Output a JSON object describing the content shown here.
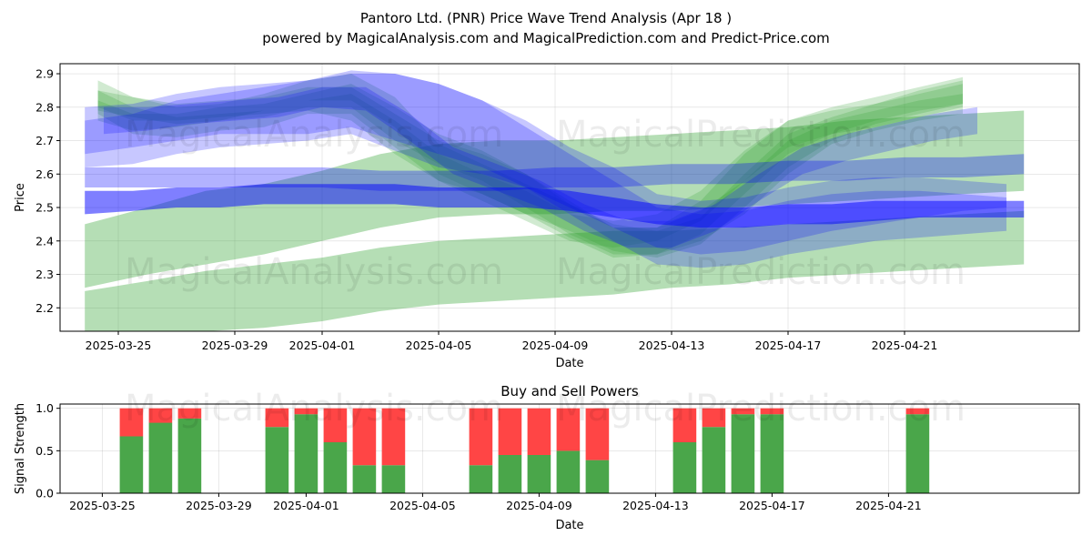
{
  "chart_data": [
    {
      "type": "area",
      "title_line1": "Pantoro Ltd. (PNR) Price Wave Trend Analysis (Apr 18 )",
      "title_line2": "powered by MagicalAnalysis.com and MagicalPrediction.com and Predict-Price.com",
      "xlabel": "Date",
      "ylabel": "Price",
      "x_start": "2025-03-23",
      "x_range_days": [
        0.55,
        33.55
      ],
      "xlim": [
        0,
        35
      ],
      "ylim": [
        2.13,
        2.93
      ],
      "x_ticks": [
        {
          "day": 2,
          "label": "2025-03-25"
        },
        {
          "day": 6,
          "label": "2025-03-29"
        },
        {
          "day": 9,
          "label": "2025-04-01"
        },
        {
          "day": 13,
          "label": "2025-04-05"
        },
        {
          "day": 17,
          "label": "2025-04-09"
        },
        {
          "day": 21,
          "label": "2025-04-13"
        },
        {
          "day": 25,
          "label": "2025-04-17"
        },
        {
          "day": 29,
          "label": "2025-04-21"
        }
      ],
      "y_ticks": [
        2.2,
        2.3,
        2.4,
        2.5,
        2.6,
        2.7,
        2.8,
        2.9
      ],
      "grid": true,
      "watermarks": [
        "MagicalAnalysis.com",
        "MagicalPrediction.com"
      ],
      "series": [
        {
          "name": "green-band-1",
          "color": "#2ca02c",
          "opacity": 0.35,
          "x": [
            0.85,
            3,
            5,
            7,
            9,
            11,
            13,
            15,
            17,
            19,
            21,
            23,
            25,
            27,
            29,
            31,
            33.1
          ],
          "lower": [
            2.26,
            2.3,
            2.33,
            2.36,
            2.4,
            2.44,
            2.47,
            2.48,
            2.48,
            2.49,
            2.49,
            2.5,
            2.51,
            2.52,
            2.53,
            2.54,
            2.55
          ],
          "upper": [
            2.45,
            2.5,
            2.55,
            2.57,
            2.61,
            2.66,
            2.69,
            2.7,
            2.7,
            2.71,
            2.72,
            2.73,
            2.74,
            2.76,
            2.77,
            2.78,
            2.79
          ]
        },
        {
          "name": "green-band-2",
          "color": "#2ca02c",
          "opacity": 0.35,
          "x": [
            0.85,
            3,
            5,
            7,
            9,
            11,
            13,
            15,
            17,
            19,
            21,
            23,
            25,
            27,
            29,
            31,
            33.1
          ],
          "lower": [
            2.12,
            2.12,
            2.13,
            2.14,
            2.16,
            2.19,
            2.21,
            2.22,
            2.23,
            2.24,
            2.26,
            2.27,
            2.29,
            2.3,
            2.31,
            2.32,
            2.33
          ],
          "upper": [
            2.25,
            2.28,
            2.31,
            2.33,
            2.35,
            2.38,
            2.4,
            2.41,
            2.42,
            2.43,
            2.43,
            2.44,
            2.45,
            2.46,
            2.47,
            2.48,
            2.49
          ]
        },
        {
          "name": "green-wave-1",
          "color": "#2ca02c",
          "opacity": 0.22,
          "x": [
            1.3,
            2.5,
            4,
            5.5,
            7,
            8.5,
            10,
            11.5,
            13,
            14.5,
            16,
            17.5,
            19,
            20.5,
            22,
            23.5,
            25,
            26.5,
            28,
            29.5,
            31
          ],
          "lower": [
            2.8,
            2.76,
            2.76,
            2.77,
            2.78,
            2.79,
            2.76,
            2.66,
            2.58,
            2.54,
            2.48,
            2.41,
            2.35,
            2.36,
            2.42,
            2.54,
            2.66,
            2.72,
            2.76,
            2.79,
            2.81
          ],
          "upper": [
            2.88,
            2.83,
            2.81,
            2.82,
            2.83,
            2.86,
            2.86,
            2.78,
            2.7,
            2.66,
            2.6,
            2.52,
            2.44,
            2.44,
            2.52,
            2.66,
            2.76,
            2.8,
            2.83,
            2.86,
            2.89
          ]
        },
        {
          "name": "green-wave-2",
          "color": "#2ca02c",
          "opacity": 0.22,
          "x": [
            1.3,
            2.5,
            4,
            5.5,
            7,
            8.5,
            10,
            11.5,
            13,
            14.5,
            16,
            17.5,
            19,
            20.5,
            22,
            23.5,
            25,
            26.5,
            28,
            29.5,
            31
          ],
          "lower": [
            2.76,
            2.73,
            2.74,
            2.76,
            2.77,
            2.8,
            2.8,
            2.7,
            2.63,
            2.58,
            2.5,
            2.42,
            2.36,
            2.36,
            2.4,
            2.48,
            2.6,
            2.69,
            2.73,
            2.76,
            2.78
          ],
          "upper": [
            2.82,
            2.78,
            2.78,
            2.8,
            2.81,
            2.84,
            2.87,
            2.8,
            2.72,
            2.67,
            2.6,
            2.51,
            2.44,
            2.44,
            2.49,
            2.58,
            2.7,
            2.76,
            2.79,
            2.82,
            2.84
          ]
        },
        {
          "name": "green-wave-3",
          "color": "#2ca02c",
          "opacity": 0.22,
          "x": [
            1.3,
            2.5,
            4,
            5.5,
            7,
            8.5,
            10,
            11.5,
            13,
            14.5,
            16,
            17.5,
            19,
            20.5,
            22,
            23.5,
            25,
            26.5,
            28,
            29.5,
            31
          ],
          "lower": [
            2.78,
            2.72,
            2.71,
            2.73,
            2.74,
            2.78,
            2.78,
            2.68,
            2.58,
            2.52,
            2.46,
            2.4,
            2.38,
            2.4,
            2.46,
            2.58,
            2.68,
            2.72,
            2.74,
            2.77,
            2.8
          ],
          "upper": [
            2.85,
            2.8,
            2.77,
            2.78,
            2.79,
            2.82,
            2.84,
            2.76,
            2.66,
            2.6,
            2.55,
            2.48,
            2.46,
            2.48,
            2.55,
            2.67,
            2.76,
            2.79,
            2.81,
            2.84,
            2.87
          ]
        },
        {
          "name": "green-wave-4",
          "color": "#2ca02c",
          "opacity": 0.22,
          "x": [
            1.3,
            2.5,
            4,
            5.5,
            7,
            8.5,
            10,
            11.5,
            13,
            14.5,
            16,
            17.5,
            19,
            20.5,
            22,
            23.5,
            25,
            26.5,
            28,
            29.5,
            31
          ],
          "lower": [
            2.79,
            2.77,
            2.75,
            2.76,
            2.79,
            2.82,
            2.82,
            2.74,
            2.6,
            2.54,
            2.48,
            2.43,
            2.37,
            2.35,
            2.39,
            2.5,
            2.62,
            2.7,
            2.75,
            2.78,
            2.81
          ],
          "upper": [
            2.85,
            2.83,
            2.8,
            2.81,
            2.84,
            2.88,
            2.9,
            2.83,
            2.69,
            2.63,
            2.57,
            2.51,
            2.45,
            2.43,
            2.47,
            2.6,
            2.72,
            2.77,
            2.81,
            2.85,
            2.88
          ]
        },
        {
          "name": "blue-band-1",
          "color": "#0000ff",
          "opacity": 0.3,
          "x": [
            0.85,
            3,
            5,
            7,
            9,
            11,
            13,
            15,
            17,
            19,
            21,
            23,
            25,
            27,
            29,
            31,
            33.1
          ],
          "lower": [
            2.56,
            2.56,
            2.56,
            2.56,
            2.56,
            2.55,
            2.55,
            2.55,
            2.56,
            2.56,
            2.57,
            2.57,
            2.58,
            2.58,
            2.59,
            2.59,
            2.6
          ],
          "upper": [
            2.62,
            2.62,
            2.62,
            2.62,
            2.62,
            2.61,
            2.61,
            2.61,
            2.62,
            2.62,
            2.63,
            2.63,
            2.64,
            2.64,
            2.65,
            2.65,
            2.66
          ]
        },
        {
          "name": "blue-wave-1",
          "color": "#0000ff",
          "opacity": 0.22,
          "x": [
            0.85,
            2.5,
            4,
            5.5,
            7,
            8.5,
            10,
            11.5,
            13,
            14.5,
            16,
            17.5,
            19,
            20.5,
            22,
            23.5,
            25,
            26.5,
            28,
            29.5,
            31,
            32.5
          ],
          "lower": [
            2.62,
            2.63,
            2.66,
            2.68,
            2.69,
            2.7,
            2.72,
            2.67,
            2.62,
            2.6,
            2.56,
            2.5,
            2.44,
            2.38,
            2.36,
            2.37,
            2.4,
            2.43,
            2.45,
            2.47,
            2.49,
            2.5
          ],
          "upper": [
            2.8,
            2.81,
            2.84,
            2.86,
            2.87,
            2.88,
            2.9,
            2.9,
            2.87,
            2.82,
            2.76,
            2.68,
            2.62,
            2.54,
            2.52,
            2.53,
            2.56,
            2.58,
            2.59,
            2.59,
            2.58,
            2.57
          ]
        },
        {
          "name": "blue-wave-2",
          "color": "#0000ff",
          "opacity": 0.22,
          "x": [
            0.85,
            2.5,
            4,
            5.5,
            7,
            8.5,
            10,
            11.5,
            13,
            14.5,
            16,
            17.5,
            19,
            20.5,
            22,
            23.5,
            25,
            26.5,
            28,
            29.5,
            31,
            32.5
          ],
          "lower": [
            2.66,
            2.68,
            2.7,
            2.72,
            2.72,
            2.72,
            2.74,
            2.7,
            2.66,
            2.62,
            2.56,
            2.48,
            2.4,
            2.33,
            2.32,
            2.33,
            2.36,
            2.38,
            2.4,
            2.41,
            2.42,
            2.43
          ],
          "upper": [
            2.76,
            2.78,
            2.82,
            2.84,
            2.86,
            2.88,
            2.91,
            2.9,
            2.87,
            2.82,
            2.74,
            2.66,
            2.58,
            2.5,
            2.48,
            2.49,
            2.52,
            2.54,
            2.55,
            2.55,
            2.54,
            2.53
          ]
        },
        {
          "name": "blue-wave-3",
          "color": "#0000ff",
          "opacity": 0.22,
          "x": [
            1.5,
            3,
            4.5,
            6,
            7.5,
            9,
            10.5,
            12,
            13.5,
            15,
            16.5,
            18,
            19.5,
            21,
            22.5,
            24,
            25.5,
            27,
            28.5,
            30,
            31.5
          ],
          "lower": [
            2.72,
            2.73,
            2.75,
            2.76,
            2.77,
            2.8,
            2.79,
            2.7,
            2.6,
            2.55,
            2.5,
            2.43,
            2.38,
            2.38,
            2.43,
            2.52,
            2.6,
            2.64,
            2.67,
            2.7,
            2.72
          ],
          "upper": [
            2.8,
            2.8,
            2.81,
            2.82,
            2.83,
            2.86,
            2.86,
            2.78,
            2.68,
            2.63,
            2.58,
            2.51,
            2.46,
            2.46,
            2.51,
            2.6,
            2.68,
            2.72,
            2.75,
            2.78,
            2.8
          ]
        },
        {
          "name": "blue-band-2",
          "color": "#0000ff",
          "opacity": 0.5,
          "x": [
            0.85,
            2.5,
            4,
            5.5,
            7,
            8.5,
            10,
            11.5,
            13,
            14.5,
            16,
            17.5,
            19,
            20.5,
            22,
            23.5,
            25,
            26.5,
            28,
            29.5,
            31,
            33.1
          ],
          "lower": [
            2.48,
            2.49,
            2.5,
            2.5,
            2.51,
            2.51,
            2.51,
            2.51,
            2.5,
            2.5,
            2.5,
            2.49,
            2.47,
            2.45,
            2.44,
            2.44,
            2.45,
            2.45,
            2.46,
            2.47,
            2.47,
            2.47
          ],
          "upper": [
            2.55,
            2.55,
            2.56,
            2.56,
            2.57,
            2.57,
            2.57,
            2.57,
            2.56,
            2.56,
            2.56,
            2.55,
            2.53,
            2.51,
            2.5,
            2.5,
            2.51,
            2.51,
            2.52,
            2.52,
            2.52,
            2.52
          ]
        }
      ]
    },
    {
      "type": "bar",
      "title": "Buy and Sell Powers",
      "xlabel": "Date",
      "ylabel": "Signal Strength",
      "x_start": "2025-03-23",
      "xlim": [
        0,
        35
      ],
      "ylim": [
        0,
        1.05
      ],
      "y_ticks": [
        0.0,
        0.5,
        1.0
      ],
      "x_ticks": [
        {
          "day": 2,
          "label": "2025-03-25"
        },
        {
          "day": 6,
          "label": "2025-03-29"
        },
        {
          "day": 9,
          "label": "2025-04-01"
        },
        {
          "day": 13,
          "label": "2025-04-05"
        },
        {
          "day": 17,
          "label": "2025-04-09"
        },
        {
          "day": 21,
          "label": "2025-04-13"
        },
        {
          "day": 25,
          "label": "2025-04-17"
        },
        {
          "day": 29,
          "label": "2025-04-21"
        }
      ],
      "buy_color": "#4aa64a",
      "sell_color": "#ff4545",
      "bars": [
        {
          "date": "2025-03-26",
          "day": 3,
          "buy": 0.67
        },
        {
          "date": "2025-03-27",
          "day": 4,
          "buy": 0.83
        },
        {
          "date": "2025-03-28",
          "day": 5,
          "buy": 0.88
        },
        {
          "date": "2025-03-31",
          "day": 8,
          "buy": 0.78
        },
        {
          "date": "2025-04-01",
          "day": 9,
          "buy": 0.93
        },
        {
          "date": "2025-04-02",
          "day": 10,
          "buy": 0.6
        },
        {
          "date": "2025-04-03",
          "day": 11,
          "buy": 0.33
        },
        {
          "date": "2025-04-04",
          "day": 12,
          "buy": 0.33
        },
        {
          "date": "2025-04-07",
          "day": 15,
          "buy": 0.33
        },
        {
          "date": "2025-04-08",
          "day": 16,
          "buy": 0.45
        },
        {
          "date": "2025-04-09",
          "day": 17,
          "buy": 0.45
        },
        {
          "date": "2025-04-10",
          "day": 18,
          "buy": 0.5
        },
        {
          "date": "2025-04-11",
          "day": 19,
          "buy": 0.39
        },
        {
          "date": "2025-04-14",
          "day": 22,
          "buy": 0.6
        },
        {
          "date": "2025-04-15",
          "day": 23,
          "buy": 0.78
        },
        {
          "date": "2025-04-16",
          "day": 24,
          "buy": 0.93
        },
        {
          "date": "2025-04-17",
          "day": 25,
          "buy": 0.93
        },
        {
          "date": "2025-04-22",
          "day": 30,
          "buy": 0.93
        }
      ]
    }
  ]
}
